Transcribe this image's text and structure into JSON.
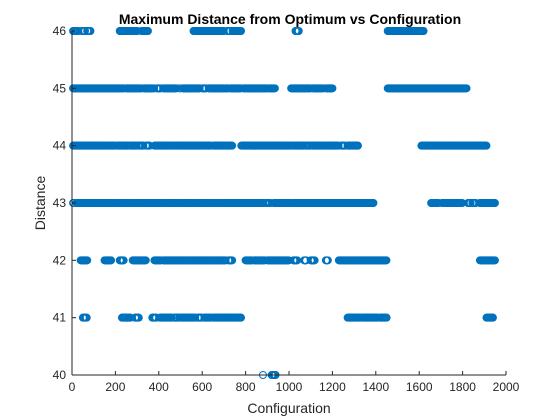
{
  "chart_data": {
    "type": "scatter",
    "title": "Maximum Distance from Optimum vs Configuration",
    "xlabel": "Configuration",
    "ylabel": "Distance",
    "xlim": [
      0,
      2000
    ],
    "ylim": [
      40,
      46
    ],
    "x_ticks": [
      "0",
      "200",
      "400",
      "600",
      "800",
      "1000",
      "1200",
      "1400",
      "1600",
      "1800",
      "2000"
    ],
    "y_ticks": [
      "40",
      "41",
      "42",
      "43",
      "44",
      "45",
      "46"
    ],
    "grid": false,
    "marker": "circle-open",
    "colors": {
      "marker": "#0072BD",
      "axis": "#262626",
      "text": "#262626",
      "background": "#ffffff"
    },
    "series": [
      {
        "values": [
          {
            "y": 46,
            "ranges": [
              [
                5,
                30
              ],
              [
                45,
                60
              ],
              [
                70,
                85
              ],
              [
                220,
                260
              ],
              [
                270,
                300
              ],
              [
                320,
                350
              ],
              [
                560,
                620
              ],
              [
                630,
                700
              ],
              [
                715,
                730
              ],
              [
                740,
                780
              ],
              [
                1030,
                1045
              ],
              [
                1455,
                1620
              ]
            ]
          },
          {
            "y": 45,
            "ranges": [
              [
                5,
                240
              ],
              [
                250,
                320
              ],
              [
                330,
                380
              ],
              [
                390,
                410
              ],
              [
                420,
                480
              ],
              [
                495,
                500
              ],
              [
                510,
                590
              ],
              [
                600,
                620
              ],
              [
                630,
                700
              ],
              [
                705,
                720
              ],
              [
                730,
                780
              ],
              [
                790,
                900
              ],
              [
                905,
                935
              ],
              [
                1010,
                1100
              ],
              [
                1110,
                1160
              ],
              [
                1170,
                1200
              ],
              [
                1455,
                1820
              ]
            ]
          },
          {
            "y": 44,
            "ranges": [
              [
                5,
                150
              ],
              [
                155,
                200
              ],
              [
                210,
                260
              ],
              [
                265,
                300
              ],
              [
                305,
                330
              ],
              [
                340,
                360
              ],
              [
                380,
                450
              ],
              [
                455,
                500
              ],
              [
                505,
                600
              ],
              [
                605,
                640
              ],
              [
                650,
                700
              ],
              [
                705,
                740
              ],
              [
                780,
                1010
              ],
              [
                1015,
                1070
              ],
              [
                1075,
                1100
              ],
              [
                1105,
                1160
              ],
              [
                1165,
                1230
              ],
              [
                1240,
                1260
              ],
              [
                1270,
                1320
              ],
              [
                1610,
                1910
              ]
            ]
          },
          {
            "y": 43,
            "ranges": [
              [
                5,
                10
              ],
              [
                20,
                200
              ],
              [
                210,
                290
              ],
              [
                300,
                420
              ],
              [
                430,
                500
              ],
              [
                510,
                580
              ],
              [
                590,
                650
              ],
              [
                660,
                690
              ],
              [
                700,
                800
              ],
              [
                805,
                880
              ],
              [
                890,
                915
              ],
              [
                930,
                1010
              ],
              [
                1020,
                1390
              ],
              [
                1655,
                1690
              ],
              [
                1705,
                1755
              ],
              [
                1765,
                1800
              ],
              [
                1825,
                1838
              ],
              [
                1845,
                1860
              ],
              [
                1880,
                1950
              ]
            ]
          },
          {
            "y": 42,
            "ranges": [
              [
                40,
                70
              ],
              [
                150,
                180
              ],
              [
                220,
                240
              ],
              [
                280,
                340
              ],
              [
                380,
                410
              ],
              [
                420,
                710
              ],
              [
                720,
                740
              ],
              [
                800,
                830
              ],
              [
                840,
                890
              ],
              [
                900,
                1000
              ],
              [
                1020,
                1040
              ],
              [
                1070,
                1080
              ],
              [
                1100,
                1120
              ],
              [
                1170,
                1180
              ],
              [
                1230,
                1450
              ],
              [
                1880,
                1950
              ]
            ]
          },
          {
            "y": 41,
            "ranges": [
              [
                50,
                70
              ],
              [
                230,
                270
              ],
              [
                290,
                310
              ],
              [
                370,
                390
              ],
              [
                405,
                460
              ],
              [
                470,
                490
              ],
              [
                495,
                500
              ],
              [
                505,
                570
              ],
              [
                580,
                600
              ],
              [
                610,
                640
              ],
              [
                650,
                660
              ],
              [
                665,
                780
              ],
              [
                1270,
                1330
              ],
              [
                1340,
                1410
              ],
              [
                1420,
                1450
              ],
              [
                1910,
                1940
              ]
            ]
          },
          {
            "y": 40,
            "ranges": [
              [
                880,
                880
              ],
              [
                920,
                940
              ]
            ]
          }
        ]
      }
    ]
  }
}
